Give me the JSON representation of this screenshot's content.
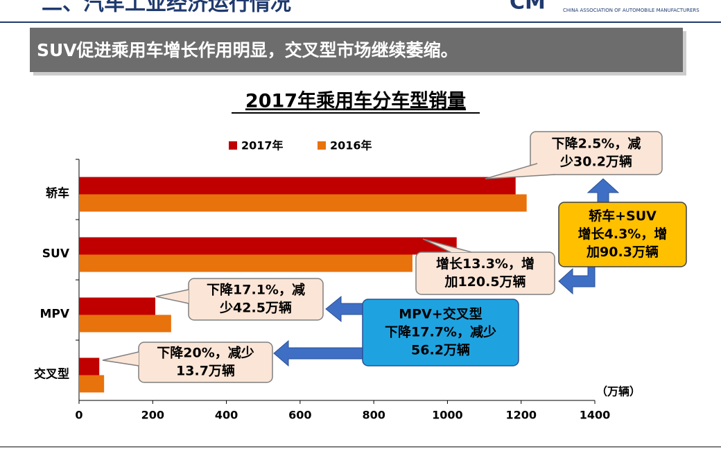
{
  "header": {
    "section": "二、汽车工业经济运行情况",
    "org": "CHINA ASSOCIATION OF AUTOMOBILE MANUFACTURERS",
    "banner": "SUV促进乘用车增长作用明显，交叉型市场继续萎缩。"
  },
  "chart_data": {
    "type": "hbar",
    "title": "2017年乘用车分车型销量",
    "categories": [
      "轿车",
      "SUV",
      "MPV",
      "交叉型"
    ],
    "series": [
      {
        "name": "2017年",
        "color": "#c00000",
        "values": [
          1185,
          1025,
          207,
          55
        ]
      },
      {
        "name": "2016年",
        "color": "#e8720c",
        "values": [
          1215,
          905,
          250,
          68
        ]
      }
    ],
    "xlim": [
      0,
      1400
    ],
    "xticks": [
      0,
      200,
      400,
      600,
      800,
      1000,
      1200,
      1400
    ],
    "x_unit": "（万辆）",
    "grid": false,
    "legend": "top",
    "annotations": [
      {
        "lines": [
          "下降2.5%，减",
          "少30.2万辆"
        ]
      },
      {
        "lines": [
          "轿车+SUV",
          "增长4.3%，增",
          "加90.3万辆"
        ]
      },
      {
        "lines": [
          "增长13.3%，增",
          "加120.5万辆"
        ]
      },
      {
        "lines": [
          "下降17.1%，减",
          "少42.5万辆"
        ]
      },
      {
        "lines": [
          "MPV+交叉型",
          "下降17.7%，减少",
          "56.2万辆"
        ]
      },
      {
        "lines": [
          "下降20%，减少",
          "13.7万辆"
        ]
      }
    ]
  }
}
